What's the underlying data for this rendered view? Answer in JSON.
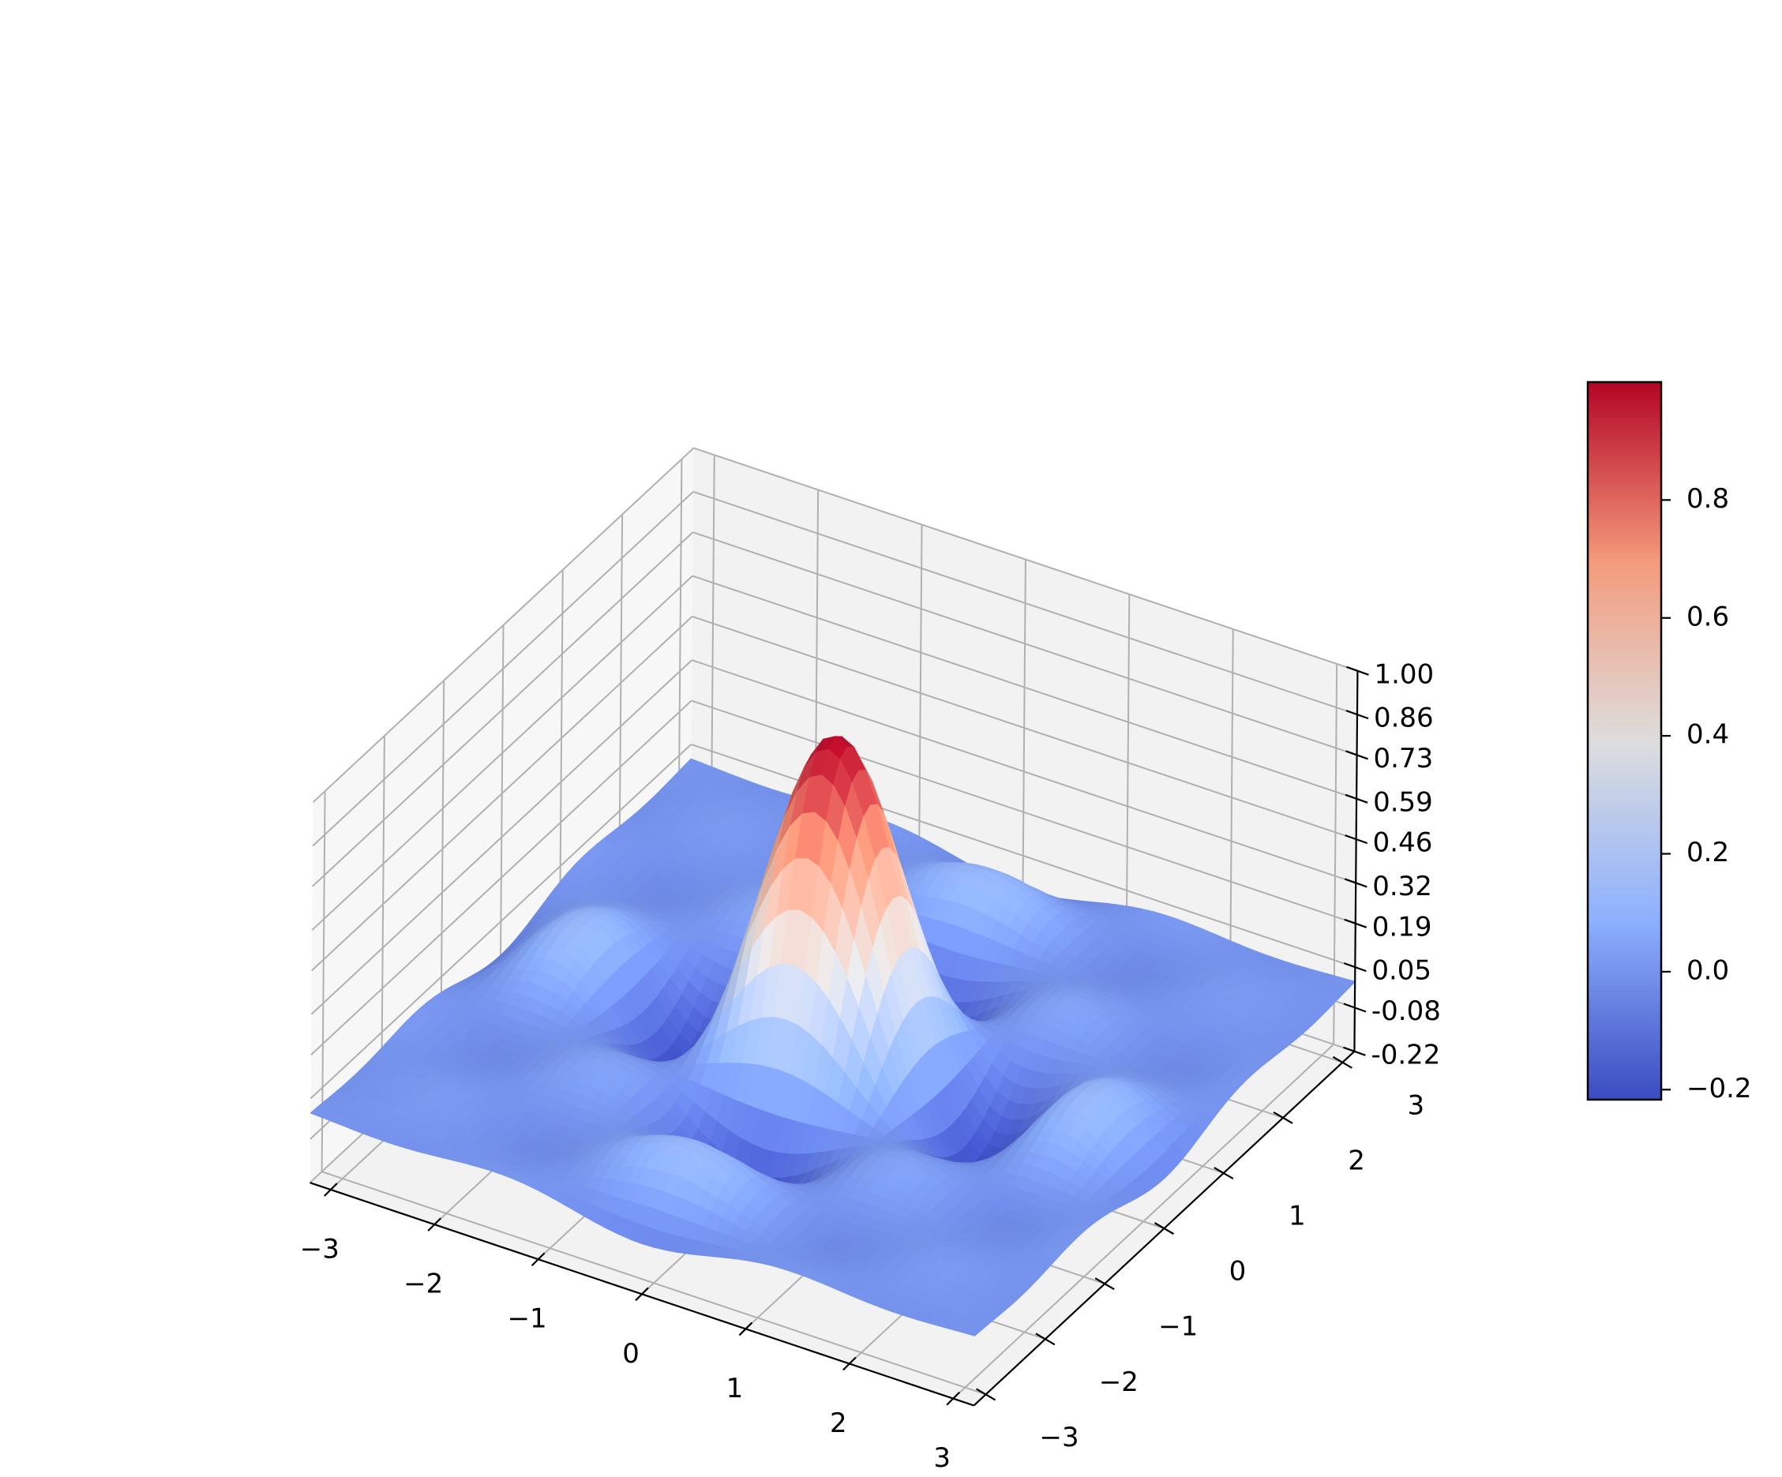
{
  "chart_data": {
    "type": "surface",
    "function": "z = sinc(x) * sinc(y) (normalized sinc, peak 1 at origin)",
    "colormap": "coolwarm",
    "x": {
      "range": [
        -3.2,
        3.2
      ],
      "ticks": [
        -3,
        -2,
        -1,
        0,
        1,
        2,
        3
      ],
      "tick_labels": [
        "−3",
        "−2",
        "−1",
        "0",
        "1",
        "2",
        "3"
      ],
      "label": ""
    },
    "y": {
      "range": [
        -3.2,
        3.2
      ],
      "ticks": [
        -3,
        -2,
        -1,
        0,
        1,
        2,
        3
      ],
      "tick_labels": [
        "−3",
        "−2",
        "−1",
        "0",
        "1",
        "2",
        "3"
      ],
      "label": ""
    },
    "z": {
      "range": [
        -0.22,
        1.0
      ],
      "ticks": [
        -0.22,
        -0.08,
        0.05,
        0.19,
        0.32,
        0.46,
        0.59,
        0.73,
        0.86,
        1.0
      ],
      "tick_labels": [
        "-0.22",
        "-0.08",
        "0.05",
        "0.19",
        "0.32",
        "0.46",
        "0.59",
        "0.73",
        "0.86",
        "1.00"
      ],
      "label": ""
    },
    "colorbar": {
      "range": [
        -0.217,
        1.0
      ],
      "ticks": [
        -0.2,
        0.0,
        0.2,
        0.4,
        0.6,
        0.8
      ],
      "tick_labels": [
        "−0.2",
        "0.0",
        "0.2",
        "0.4",
        "0.6",
        "0.8"
      ],
      "colors": [
        "#3b4cc0",
        "#8db0fe",
        "#dddddd",
        "#f49a7b",
        "#b40426"
      ]
    },
    "grid": true,
    "title": ""
  }
}
